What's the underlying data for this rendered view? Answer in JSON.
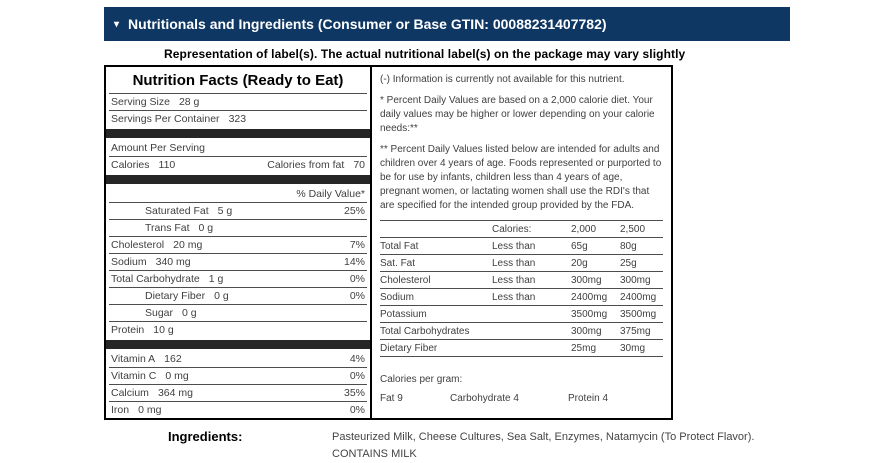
{
  "header": {
    "collapse_glyph": "▾",
    "title": "Nutritionals and Ingredients (Consumer or Base GTIN: 00088231407782)"
  },
  "disclaimer": "Representation of label(s). The actual nutritional label(s) on the package may vary slightly",
  "label": {
    "title": "Nutrition Facts (Ready to Eat)",
    "serving_size": {
      "name": "Serving Size",
      "value": "28 g"
    },
    "servings_per_container": {
      "name": "Servings Per Container",
      "value": "323"
    },
    "amount_per_serving": "Amount Per Serving",
    "calories": {
      "name": "Calories",
      "value": "110"
    },
    "calories_from_fat": {
      "name": "Calories from fat",
      "value": "70"
    },
    "daily_value_header": "% Daily Value*",
    "nutrients": [
      {
        "name": "Saturated Fat",
        "amount": "5 g",
        "dv": "25%"
      },
      {
        "name": "Trans Fat",
        "amount": "0 g",
        "dv": ""
      },
      {
        "name": "Cholesterol",
        "amount": "20 mg",
        "dv": "7%"
      },
      {
        "name": "Sodium",
        "amount": "340 mg",
        "dv": "14%"
      },
      {
        "name": "Total Carbohydrate",
        "amount": "1 g",
        "dv": "0%"
      },
      {
        "name": "Dietary Fiber",
        "amount": "0 g",
        "dv": "0%"
      },
      {
        "name": "Sugar",
        "amount": "0 g",
        "dv": ""
      },
      {
        "name": "Protein",
        "amount": "10 g",
        "dv": ""
      }
    ],
    "vitamins": [
      {
        "name": "Vitamin A",
        "amount": "162",
        "dv": "4%"
      },
      {
        "name": "Vitamin C",
        "amount": "0 mg",
        "dv": "0%"
      },
      {
        "name": "Calcium",
        "amount": "364 mg",
        "dv": "35%"
      },
      {
        "name": "Iron",
        "amount": "0 mg",
        "dv": "0%"
      }
    ]
  },
  "notes": [
    "(-) Information is currently not available for this nutrient.",
    "* Percent Daily Values are based on a 2,000 calorie diet. Your daily values may be higher or lower depending on your calorie needs:**",
    "** Percent Daily Values listed below are intended for adults and children over 4 years of age. Foods represented or purported to be for use by infants, children less than 4 years of age, pregnant women, or lactating women shall use the RDI's that are specified for the intended group provided by the FDA."
  ],
  "dv_table": {
    "header": {
      "col1": "",
      "col2": "Calories:",
      "col3": "2,000",
      "col4": "2,500"
    },
    "rows": [
      {
        "nutrient": "Total Fat",
        "qualifier": "Less than",
        "v2000": "65g",
        "v2500": "80g"
      },
      {
        "nutrient": "Sat. Fat",
        "qualifier": "Less than",
        "v2000": "20g",
        "v2500": "25g"
      },
      {
        "nutrient": "Cholesterol",
        "qualifier": "Less than",
        "v2000": "300mg",
        "v2500": "300mg"
      },
      {
        "nutrient": "Sodium",
        "qualifier": "Less than",
        "v2000": "2400mg",
        "v2500": "2400mg"
      },
      {
        "nutrient": "Potassium",
        "qualifier": "",
        "v2000": "3500mg",
        "v2500": "3500mg"
      },
      {
        "nutrient": "Total Carbohydrates",
        "qualifier": "",
        "v2000": "300mg",
        "v2500": "375mg"
      },
      {
        "nutrient": "Dietary Fiber",
        "qualifier": "",
        "v2000": "25mg",
        "v2500": "30mg"
      }
    ]
  },
  "calories_per_gram": {
    "title": "Calories per gram:",
    "fat": "Fat 9",
    "carbohydrate": "Carbohydrate 4",
    "protein": "Protein 4"
  },
  "ingredients": {
    "label": "Ingredients:",
    "text": "Pasteurized Milk, Cheese Cultures, Sea Salt, Enzymes, Natamycin (To Protect Flavor). CONTAINS MILK"
  },
  "colors": {
    "header_bg": "#0e3764",
    "header_text": "#ffffff",
    "body_text": "#404040",
    "rule": "#4d4d4d",
    "thick_bar": "#262626"
  }
}
